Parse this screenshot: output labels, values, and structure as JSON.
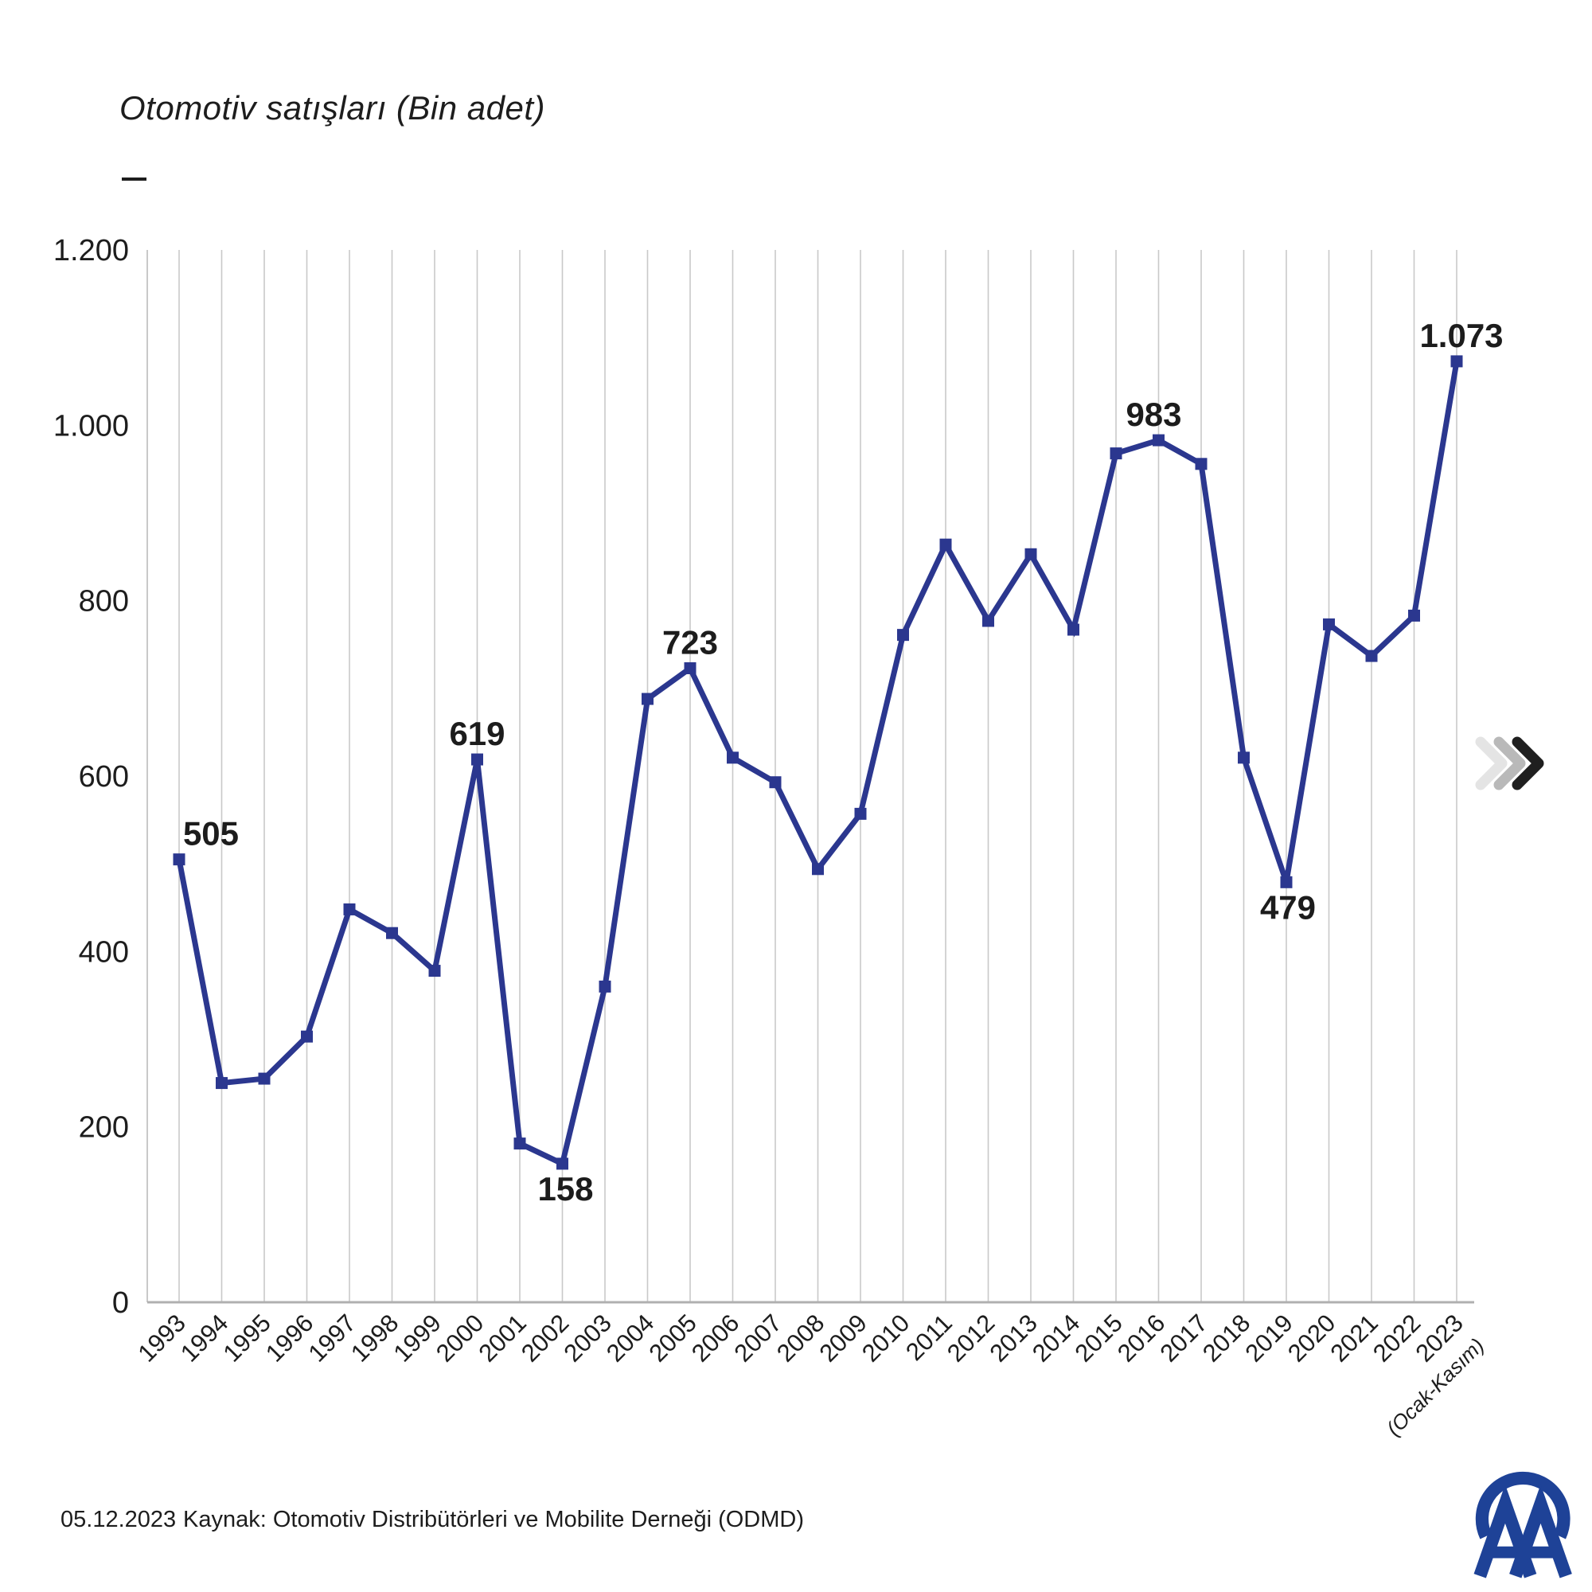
{
  "title": "Otomotiv satışları (Bin adet)",
  "footer": {
    "date": "05.12.2023",
    "source": "Kaynak: Otomotiv Distribütörleri ve Mobilite Derneği (ODMD)"
  },
  "colors": {
    "line": "#2b378f",
    "marker": "#2b378f",
    "grid": "#c9c9c9",
    "axis_line": "#b0b0b0",
    "text": "#1d1d1d",
    "point_label": "#1c1c1c",
    "chevron_light": "#e4e4e4",
    "chevron_mid": "#b9b9b9",
    "chevron_dark": "#1f1f1f",
    "logo_blue": "#1e4297"
  },
  "icons": {
    "fast_forward": "triple-chevron-right",
    "logo": "AA (Anadolu Ajansı)"
  },
  "chart_data": {
    "type": "line",
    "title": "Otomotiv satışları (Bin adet)",
    "x": [
      1993,
      1994,
      1995,
      1996,
      1997,
      1998,
      1999,
      2000,
      2001,
      2002,
      2003,
      2004,
      2005,
      2006,
      2007,
      2008,
      2009,
      2010,
      2011,
      2012,
      2013,
      2014,
      2015,
      2016,
      2017,
      2018,
      2019,
      2020,
      2021,
      2022,
      2023
    ],
    "values": [
      505,
      250,
      255,
      303,
      448,
      421,
      378,
      619,
      181,
      158,
      360,
      688,
      723,
      621,
      593,
      494,
      557,
      761,
      864,
      777,
      853,
      767,
      968,
      983,
      956,
      621,
      479,
      773,
      737,
      783,
      1073
    ],
    "y_ticks": [
      "0",
      "200",
      "400",
      "600",
      "800",
      "1.000",
      "1.200"
    ],
    "ylim": [
      0,
      1200
    ],
    "y_step": 200,
    "grid": "vertical-only",
    "legend": "none",
    "x_note": {
      "year": 2023,
      "text": "(Ocak-Kasım)"
    },
    "point_labels": [
      {
        "year": 1993,
        "text": "505",
        "position": "above",
        "dx": 40
      },
      {
        "year": 2000,
        "text": "619",
        "position": "above",
        "dx": 0
      },
      {
        "year": 2002,
        "text": "158",
        "position": "below",
        "dx": 4
      },
      {
        "year": 2005,
        "text": "723",
        "position": "above",
        "dx": 0
      },
      {
        "year": 2016,
        "text": "983",
        "position": "above",
        "dx": -6
      },
      {
        "year": 2019,
        "text": "479",
        "position": "below",
        "dx": 2
      },
      {
        "year": 2023,
        "text": "1.073",
        "position": "above",
        "dx": 6
      }
    ]
  }
}
